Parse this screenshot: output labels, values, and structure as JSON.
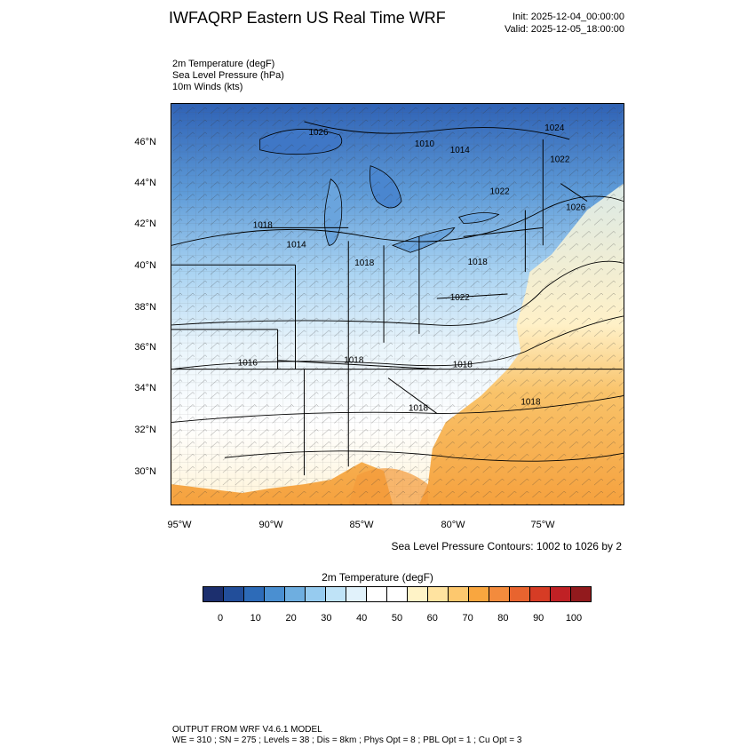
{
  "header": {
    "title": "IWFAQRP Eastern US Real Time WRF",
    "init": "Init: 2025-12-04_00:00:00",
    "valid": "Valid: 2025-12-05_18:00:00"
  },
  "fields": [
    "2m Temperature   (degF)",
    "Sea Level Pressure   (hPa)",
    "10m Winds   (kts)"
  ],
  "map": {
    "lat_labels": [
      "46°N",
      "44°N",
      "42°N",
      "40°N",
      "38°N",
      "36°N",
      "34°N",
      "32°N",
      "30°N"
    ],
    "lon_labels": [
      "95°W",
      "90°W",
      "85°W",
      "80°W",
      "75°W"
    ],
    "pressure_labels": [
      "1026",
      "1010",
      "1014",
      "1024",
      "1022",
      "1026",
      "1022",
      "1018",
      "1014",
      "1018",
      "1018",
      "1022",
      "1016",
      "1018",
      "1018",
      "1018",
      "1018"
    ],
    "colors": {
      "land_cold": "#3a6fc0",
      "land_cool": "#8cc4ec",
      "land_mild": "#ffffff",
      "ocean_warm": "#f7a23c",
      "border": "#000000"
    }
  },
  "contours_note": "Sea Level Pressure Contours: 1002 to 1026 by 2",
  "colorbar": {
    "title": "2m Temperature  (degF)",
    "ticks": [
      "0",
      "10",
      "20",
      "30",
      "40",
      "50",
      "60",
      "70",
      "80",
      "90",
      "100"
    ],
    "colors": [
      "#1c2f6e",
      "#224e9a",
      "#2d6bb8",
      "#4a8fd1",
      "#6eaee0",
      "#96cbef",
      "#bfe3f7",
      "#e1f2fb",
      "#ffffff",
      "#ffffff",
      "#fff3c7",
      "#ffe3a0",
      "#fdc86e",
      "#f9a63f",
      "#f38b3d",
      "#e8642f",
      "#d63c25",
      "#c02125",
      "#921a1d"
    ]
  },
  "footer": {
    "line1": "OUTPUT FROM WRF V4.6.1 MODEL",
    "line2": "WE = 310 ; SN = 275 ; Levels = 38 ; Dis = 8km ; Phys Opt = 8 ; PBL Opt = 1 ; Cu Opt = 3"
  }
}
